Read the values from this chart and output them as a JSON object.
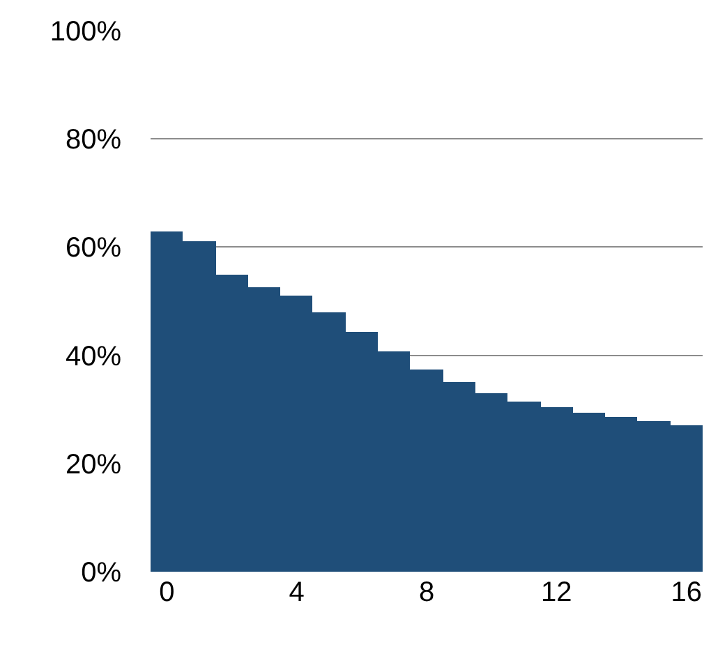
{
  "chart_data": {
    "type": "bar",
    "x": [
      0,
      1,
      2,
      3,
      4,
      5,
      6,
      7,
      8,
      9,
      10,
      11,
      12,
      13,
      14,
      15,
      16
    ],
    "values": [
      63,
      61,
      55,
      52.5,
      51,
      48,
      44.3,
      40.7,
      37.5,
      35,
      33.1,
      31.5,
      30.3,
      29.3,
      28.5,
      27.8,
      27.1
    ],
    "color": "#1f4e79",
    "xlim": [
      -0.5,
      16.5
    ],
    "xticks": [
      0,
      4,
      8,
      12,
      16
    ],
    "ylim": [
      0,
      100
    ],
    "yticks": [
      {
        "value": 0,
        "label": "0%"
      },
      {
        "value": 20,
        "label": "20%"
      },
      {
        "value": 40,
        "label": "40%"
      },
      {
        "value": 60,
        "label": "60%"
      },
      {
        "value": 80,
        "label": "80%"
      },
      {
        "value": 100,
        "label": "100%"
      }
    ],
    "grid": "y"
  }
}
